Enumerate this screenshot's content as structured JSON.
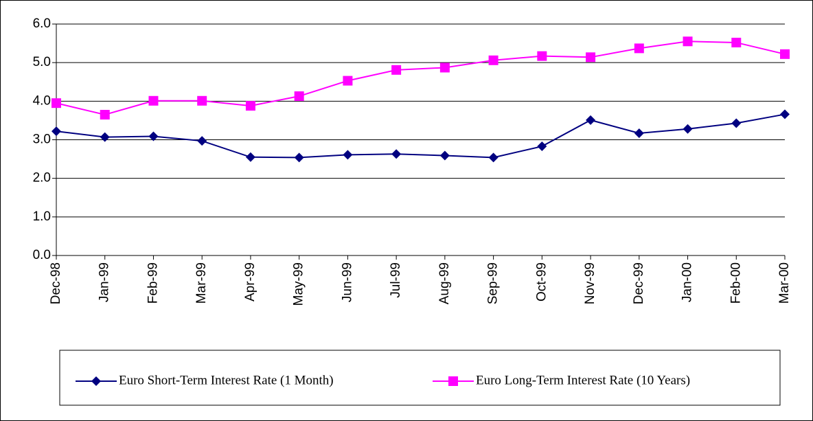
{
  "chart_data": {
    "type": "line",
    "categories": [
      "Dec-98",
      "Jan-99",
      "Feb-99",
      "Mar-99",
      "Apr-99",
      "May-99",
      "Jun-99",
      "Jul-99",
      "Aug-99",
      "Sep-99",
      "Oct-99",
      "Nov-99",
      "Dec-99",
      "Jan-00",
      "Feb-00",
      "Mar-00"
    ],
    "series": [
      {
        "name": "Euro Short-Term Interest Rate (1 Month)",
        "color": "#000080",
        "marker": "diamond",
        "values": [
          3.22,
          3.07,
          3.09,
          2.97,
          2.55,
          2.54,
          2.61,
          2.63,
          2.59,
          2.54,
          2.83,
          3.51,
          3.17,
          3.28,
          3.43,
          3.66
        ]
      },
      {
        "name": "Euro Long-Term Interest Rate (10 Years)",
        "color": "#ff00ff",
        "marker": "square",
        "values": [
          3.95,
          3.65,
          4.01,
          4.01,
          3.88,
          4.13,
          4.53,
          4.81,
          4.87,
          5.06,
          5.17,
          5.14,
          5.37,
          5.55,
          5.52,
          5.22
        ]
      }
    ],
    "ylim": [
      0,
      6
    ],
    "yticks": [
      {
        "value": 0,
        "label": "0.0"
      },
      {
        "value": 1,
        "label": "1.0"
      },
      {
        "value": 2,
        "label": "2.0"
      },
      {
        "value": 3,
        "label": "3.0"
      },
      {
        "value": 4,
        "label": "4.0"
      },
      {
        "value": 5,
        "label": "5.0"
      },
      {
        "value": 6,
        "label": "6.0"
      }
    ],
    "grid": true,
    "legend": "bottom"
  }
}
